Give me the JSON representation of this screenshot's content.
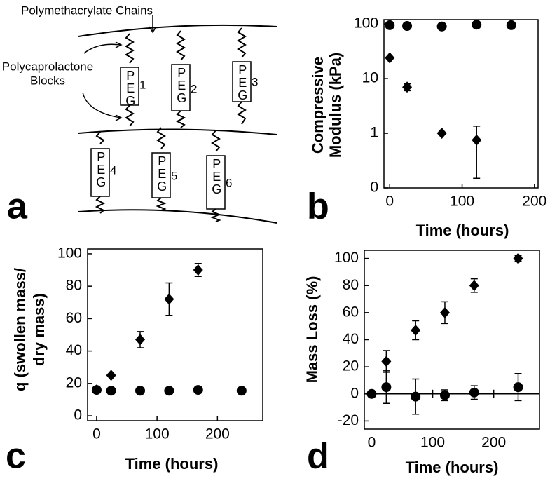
{
  "diagram": {
    "panel_label": "a",
    "chains_label": "Polymethacrylate Chains",
    "blocks_label": [
      "Polycaprolactone",
      "Blocks"
    ],
    "blocks": [
      {
        "label": "PEG",
        "number": "1"
      },
      {
        "label": "PEG",
        "number": "2"
      },
      {
        "label": "PEG",
        "number": "3"
      },
      {
        "label": "PEG",
        "number": "4"
      },
      {
        "label": "PEG",
        "number": "5"
      },
      {
        "label": "PEG",
        "number": "6"
      }
    ]
  },
  "chart_data": [
    {
      "type": "scatter",
      "panel_label": "b",
      "x_label": "Time (hours)",
      "y_label": [
        "Compressive",
        "Modulus (kPa)"
      ],
      "log_y": true,
      "xlim": [
        -8,
        205
      ],
      "xticks": [
        0,
        100,
        200
      ],
      "ylim": [
        0.1,
        120
      ],
      "yticks": [
        {
          "value": 0.1,
          "label": "0"
        },
        1,
        10,
        100
      ],
      "series": [
        {
          "marker": "circle",
          "color": "#000000",
          "x": [
            0,
            24,
            72,
            120,
            168
          ],
          "values": [
            95,
            92,
            90,
            97,
            95
          ]
        },
        {
          "marker": "diamond",
          "color": "#000000",
          "x": [
            0,
            24,
            72,
            120
          ],
          "values": [
            24,
            7,
            1,
            0.75
          ],
          "errors": [
            null,
            1,
            null,
            0.6
          ]
        }
      ]
    },
    {
      "type": "scatter",
      "panel_label": "c",
      "x_label": "Time (hours)",
      "y_label": [
        "q (swollen mass/",
        "dry mass)"
      ],
      "xlim": [
        -15,
        275
      ],
      "xticks": [
        0,
        100,
        200
      ],
      "ylim": [
        -3,
        103
      ],
      "yticks": [
        0,
        20,
        40,
        60,
        80,
        100
      ],
      "series": [
        {
          "marker": "circle",
          "color": "#000000",
          "x": [
            0,
            24,
            72,
            120,
            168,
            240
          ],
          "values": [
            16,
            15.5,
            15.5,
            15.5,
            16,
            15.5
          ]
        },
        {
          "marker": "diamond",
          "color": "#000000",
          "x": [
            0,
            24,
            72,
            120,
            168
          ],
          "values": [
            16,
            25,
            47,
            72,
            90
          ],
          "errors": [
            null,
            null,
            5,
            10,
            4
          ]
        }
      ]
    },
    {
      "type": "scatter",
      "panel_label": "d",
      "x_label": "Time (hours)",
      "y_label": [
        "Mass Loss (%)"
      ],
      "xlim": [
        -12,
        275
      ],
      "xticks": [
        0,
        100,
        200
      ],
      "ylim": [
        -26,
        106
      ],
      "yticks": [
        -20,
        0,
        20,
        40,
        60,
        80,
        100
      ],
      "zero_line": true,
      "series": [
        {
          "marker": "circle",
          "color": "#000000",
          "x": [
            0,
            24,
            72,
            120,
            168,
            240
          ],
          "values": [
            0,
            5,
            -2,
            -1,
            1,
            5
          ],
          "errors": [
            null,
            12,
            13,
            4,
            5,
            10
          ]
        },
        {
          "marker": "diamond",
          "color": "#000000",
          "x": [
            24,
            72,
            120,
            168,
            240
          ],
          "values": [
            24,
            47,
            60,
            80,
            100
          ],
          "errors": [
            8,
            7,
            8,
            5,
            2
          ]
        }
      ]
    }
  ]
}
